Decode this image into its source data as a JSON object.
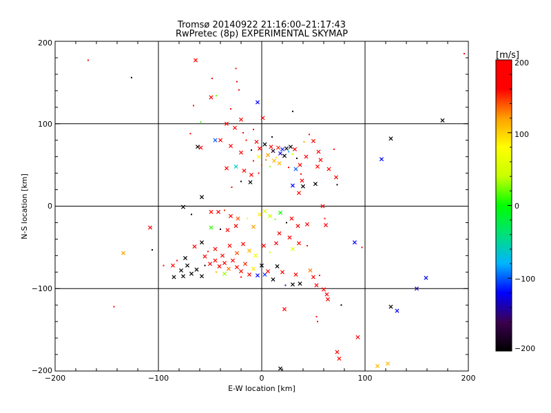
{
  "chart_data": {
    "type": "scatter",
    "title": "Tromsø 20140922 21:16:00–21:17:43",
    "subtitle": "RwPretec (8p) EXPERIMENTAL SKYMAP",
    "xlabel": "E-W location [km]",
    "ylabel": "N-S location [km]",
    "xlim": [
      -200,
      200
    ],
    "ylim": [
      -200,
      200
    ],
    "xticks": [
      "−200",
      "−100",
      "0",
      "100",
      "200"
    ],
    "yticks": [
      "200",
      "100",
      "0",
      "−100",
      "−200"
    ],
    "grid": true,
    "colorbar": {
      "label": "[m/s]",
      "range": [
        -200,
        200
      ],
      "ticks": [
        "200",
        "100",
        "0",
        "−100",
        "−200"
      ],
      "colors": [
        "#000000",
        "#3c0050",
        "#0000ff",
        "#00b4ff",
        "#00e07a",
        "#00ff00",
        "#c8ff00",
        "#ffff00",
        "#ffa000",
        "#ff0000",
        "#ff0000"
      ]
    },
    "markers": {
      "cross": "×",
      "dot": "."
    },
    "points": [
      {
        "x": -168,
        "y": 177,
        "v": 200,
        "m": "dot"
      },
      {
        "x": -126,
        "y": 156,
        "v": -200,
        "m": "dot"
      },
      {
        "x": -64,
        "y": 177,
        "v": 180,
        "m": "cross"
      },
      {
        "x": -25,
        "y": 167,
        "v": 200,
        "m": "dot"
      },
      {
        "x": 196,
        "y": 185,
        "v": 200,
        "m": "dot"
      },
      {
        "x": -49,
        "y": 132,
        "v": 190,
        "m": "cross"
      },
      {
        "x": -44,
        "y": 134,
        "v": 20,
        "m": "dot"
      },
      {
        "x": -4,
        "y": 126,
        "v": -120,
        "m": "cross"
      },
      {
        "x": 1,
        "y": 107,
        "v": 200,
        "m": "cross"
      },
      {
        "x": -34,
        "y": 100,
        "v": 180,
        "m": "cross"
      },
      {
        "x": -26,
        "y": 95,
        "v": 200,
        "m": "cross"
      },
      {
        "x": -20,
        "y": 105,
        "v": 170,
        "m": "cross"
      },
      {
        "x": -45,
        "y": 80,
        "v": -100,
        "m": "cross"
      },
      {
        "x": -62,
        "y": 72,
        "v": -200,
        "m": "cross"
      },
      {
        "x": -69,
        "y": 88,
        "v": 200,
        "m": "dot"
      },
      {
        "x": -59,
        "y": 71,
        "v": 200,
        "m": "cross"
      },
      {
        "x": -40,
        "y": 80,
        "v": 180,
        "m": "cross"
      },
      {
        "x": -30,
        "y": 73,
        "v": 190,
        "m": "cross"
      },
      {
        "x": -20,
        "y": 65,
        "v": 160,
        "m": "cross"
      },
      {
        "x": -15,
        "y": 80,
        "v": 200,
        "m": "dot"
      },
      {
        "x": -10,
        "y": 68,
        "v": -200,
        "m": "dot"
      },
      {
        "x": -5,
        "y": 78,
        "v": 200,
        "m": "cross"
      },
      {
        "x": -2,
        "y": 70,
        "v": 180,
        "m": "cross"
      },
      {
        "x": 3,
        "y": 75,
        "v": -200,
        "m": "cross"
      },
      {
        "x": 6,
        "y": 62,
        "v": 120,
        "m": "cross"
      },
      {
        "x": 9,
        "y": 72,
        "v": 200,
        "m": "cross"
      },
      {
        "x": 11,
        "y": 67,
        "v": -180,
        "m": "cross"
      },
      {
        "x": 14,
        "y": 59,
        "v": 90,
        "m": "dot"
      },
      {
        "x": 16,
        "y": 71,
        "v": 150,
        "m": "cross"
      },
      {
        "x": 18,
        "y": 64,
        "v": -130,
        "m": "cross"
      },
      {
        "x": 20,
        "y": 69,
        "v": -110,
        "m": "cross"
      },
      {
        "x": 22,
        "y": 61,
        "v": -200,
        "m": "cross"
      },
      {
        "x": 24,
        "y": 70,
        "v": -190,
        "m": "cross"
      },
      {
        "x": 26,
        "y": 66,
        "v": -80,
        "m": "dot"
      },
      {
        "x": 28,
        "y": 72,
        "v": -200,
        "m": "cross"
      },
      {
        "x": 30,
        "y": 63,
        "v": 40,
        "m": "dot"
      },
      {
        "x": 32,
        "y": 69,
        "v": 200,
        "m": "cross"
      },
      {
        "x": 34,
        "y": 58,
        "v": -200,
        "m": "dot"
      },
      {
        "x": 12,
        "y": 55,
        "v": 110,
        "m": "cross"
      },
      {
        "x": 4,
        "y": 56,
        "v": 130,
        "m": "dot"
      },
      {
        "x": -3,
        "y": 60,
        "v": 80,
        "m": "cross"
      },
      {
        "x": -8,
        "y": 55,
        "v": 160,
        "m": "dot"
      },
      {
        "x": -25,
        "y": 48,
        "v": -60,
        "m": "cross"
      },
      {
        "x": -34,
        "y": 46,
        "v": 200,
        "m": "cross"
      },
      {
        "x": -17,
        "y": 43,
        "v": 200,
        "m": "cross"
      },
      {
        "x": 0,
        "y": 50,
        "v": 150,
        "m": "dot"
      },
      {
        "x": 8,
        "y": 48,
        "v": 30,
        "m": "dot"
      },
      {
        "x": 17,
        "y": 52,
        "v": 110,
        "m": "cross"
      },
      {
        "x": 26,
        "y": 47,
        "v": 190,
        "m": "dot"
      },
      {
        "x": 37,
        "y": 50,
        "v": 200,
        "m": "cross"
      },
      {
        "x": 43,
        "y": 60,
        "v": 200,
        "m": "cross"
      },
      {
        "x": 50,
        "y": 79,
        "v": 200,
        "m": "cross"
      },
      {
        "x": 55,
        "y": 66,
        "v": 200,
        "m": "cross"
      },
      {
        "x": 57,
        "y": 56,
        "v": 200,
        "m": "cross"
      },
      {
        "x": 70,
        "y": 69,
        "v": 200,
        "m": "dot"
      },
      {
        "x": 54,
        "y": 48,
        "v": 180,
        "m": "cross"
      },
      {
        "x": 65,
        "y": 45,
        "v": 200,
        "m": "cross"
      },
      {
        "x": 30,
        "y": 115,
        "v": -200,
        "m": "dot"
      },
      {
        "x": 33,
        "y": 45,
        "v": -100,
        "m": "cross"
      },
      {
        "x": 38,
        "y": 39,
        "v": 200,
        "m": "dot"
      },
      {
        "x": -10,
        "y": 38,
        "v": 180,
        "m": "cross"
      },
      {
        "x": -20,
        "y": 30,
        "v": -200,
        "m": "dot"
      },
      {
        "x": -11,
        "y": 29,
        "v": -200,
        "m": "cross"
      },
      {
        "x": -3,
        "y": 40,
        "v": 200,
        "m": "dot"
      },
      {
        "x": 39,
        "y": 31,
        "v": 200,
        "m": "cross"
      },
      {
        "x": 30,
        "y": 25,
        "v": -120,
        "m": "cross"
      },
      {
        "x": 40,
        "y": 24,
        "v": -200,
        "m": "cross"
      },
      {
        "x": 52,
        "y": 27,
        "v": -200,
        "m": "cross"
      },
      {
        "x": 72,
        "y": 35,
        "v": 200,
        "m": "cross"
      },
      {
        "x": 73,
        "y": 26,
        "v": -200,
        "m": "dot"
      },
      {
        "x": 36,
        "y": 16,
        "v": 200,
        "m": "cross"
      },
      {
        "x": -58,
        "y": 11,
        "v": -200,
        "m": "cross"
      },
      {
        "x": -29,
        "y": 23,
        "v": 190,
        "m": "dot"
      },
      {
        "x": 116,
        "y": 57,
        "v": -120,
        "m": "cross"
      },
      {
        "x": 125,
        "y": 82,
        "v": -200,
        "m": "cross"
      },
      {
        "x": 175,
        "y": 104,
        "v": -200,
        "m": "cross"
      },
      {
        "x": -76,
        "y": -1,
        "v": -200,
        "m": "cross"
      },
      {
        "x": -68,
        "y": -10,
        "v": -200,
        "m": "dot"
      },
      {
        "x": -49,
        "y": -7,
        "v": 200,
        "m": "cross"
      },
      {
        "x": -42,
        "y": -7,
        "v": 170,
        "m": "cross"
      },
      {
        "x": -36,
        "y": -5,
        "v": 150,
        "m": "dot"
      },
      {
        "x": -30,
        "y": -12,
        "v": 200,
        "m": "cross"
      },
      {
        "x": -23,
        "y": -15,
        "v": 140,
        "m": "cross"
      },
      {
        "x": -49,
        "y": -26,
        "v": 10,
        "m": "cross"
      },
      {
        "x": -40,
        "y": -28,
        "v": -200,
        "m": "dot"
      },
      {
        "x": -33,
        "y": -29,
        "v": 200,
        "m": "cross"
      },
      {
        "x": -25,
        "y": -24,
        "v": 180,
        "m": "cross"
      },
      {
        "x": -14,
        "y": -15,
        "v": 70,
        "m": "dot"
      },
      {
        "x": -8,
        "y": -25,
        "v": 120,
        "m": "cross"
      },
      {
        "x": -2,
        "y": -10,
        "v": 90,
        "m": "cross"
      },
      {
        "x": 3,
        "y": -6,
        "v": 60,
        "m": "cross"
      },
      {
        "x": 8,
        "y": -12,
        "v": 40,
        "m": "cross"
      },
      {
        "x": 13,
        "y": -16,
        "v": 20,
        "m": "dot"
      },
      {
        "x": 18,
        "y": -8,
        "v": 0,
        "m": "cross"
      },
      {
        "x": 24,
        "y": -20,
        "v": -200,
        "m": "dot"
      },
      {
        "x": 29,
        "y": -15,
        "v": 200,
        "m": "cross"
      },
      {
        "x": 35,
        "y": -24,
        "v": 200,
        "m": "cross"
      },
      {
        "x": 44,
        "y": -22,
        "v": 160,
        "m": "cross"
      },
      {
        "x": 59,
        "y": 0,
        "v": 200,
        "m": "cross"
      },
      {
        "x": 61,
        "y": -15,
        "v": 200,
        "m": "dot"
      },
      {
        "x": 62,
        "y": -23,
        "v": 200,
        "m": "cross"
      },
      {
        "x": 17,
        "y": -33,
        "v": 200,
        "m": "cross"
      },
      {
        "x": 27,
        "y": -38,
        "v": 160,
        "m": "cross"
      },
      {
        "x": 36,
        "y": -45,
        "v": 200,
        "m": "cross"
      },
      {
        "x": 44,
        "y": -48,
        "v": 200,
        "m": "dot"
      },
      {
        "x": 30,
        "y": -52,
        "v": 60,
        "m": "cross"
      },
      {
        "x": -65,
        "y": -49,
        "v": 200,
        "m": "cross"
      },
      {
        "x": -58,
        "y": -44,
        "v": -200,
        "m": "cross"
      },
      {
        "x": -52,
        "y": -55,
        "v": 200,
        "m": "dot"
      },
      {
        "x": -45,
        "y": -52,
        "v": 180,
        "m": "cross"
      },
      {
        "x": -38,
        "y": -60,
        "v": 160,
        "m": "cross"
      },
      {
        "x": -31,
        "y": -48,
        "v": 200,
        "m": "cross"
      },
      {
        "x": -24,
        "y": -57,
        "v": 140,
        "m": "cross"
      },
      {
        "x": -18,
        "y": -46,
        "v": 200,
        "m": "cross"
      },
      {
        "x": -12,
        "y": -54,
        "v": 110,
        "m": "cross"
      },
      {
        "x": -6,
        "y": -60,
        "v": 70,
        "m": "cross"
      },
      {
        "x": 2,
        "y": -48,
        "v": 200,
        "m": "cross"
      },
      {
        "x": 8,
        "y": -56,
        "v": 40,
        "m": "dot"
      },
      {
        "x": 14,
        "y": -45,
        "v": 160,
        "m": "cross"
      },
      {
        "x": -74,
        "y": -63,
        "v": -200,
        "m": "cross"
      },
      {
        "x": -72,
        "y": -72,
        "v": -200,
        "m": "cross"
      },
      {
        "x": -78,
        "y": -78,
        "v": -200,
        "m": "cross"
      },
      {
        "x": -76,
        "y": -85,
        "v": -200,
        "m": "cross"
      },
      {
        "x": -68,
        "y": -82,
        "v": -200,
        "m": "cross"
      },
      {
        "x": -63,
        "y": -77,
        "v": -200,
        "m": "cross"
      },
      {
        "x": -58,
        "y": -85,
        "v": -200,
        "m": "cross"
      },
      {
        "x": -55,
        "y": -72,
        "v": -200,
        "m": "dot"
      },
      {
        "x": -86,
        "y": -72,
        "v": 200,
        "m": "cross"
      },
      {
        "x": -82,
        "y": -66,
        "v": 200,
        "m": "dot"
      },
      {
        "x": -95,
        "y": -72,
        "v": 200,
        "m": "dot"
      },
      {
        "x": -85,
        "y": -86,
        "v": -200,
        "m": "cross"
      },
      {
        "x": -50,
        "y": -70,
        "v": 200,
        "m": "cross"
      },
      {
        "x": -45,
        "y": -66,
        "v": 160,
        "m": "cross"
      },
      {
        "x": -41,
        "y": -73,
        "v": 200,
        "m": "cross"
      },
      {
        "x": -36,
        "y": -69,
        "v": 180,
        "m": "cross"
      },
      {
        "x": -32,
        "y": -76,
        "v": 130,
        "m": "cross"
      },
      {
        "x": -28,
        "y": -66,
        "v": 200,
        "m": "cross"
      },
      {
        "x": -24,
        "y": -74,
        "v": 170,
        "m": "cross"
      },
      {
        "x": -20,
        "y": -79,
        "v": 200,
        "m": "cross"
      },
      {
        "x": -16,
        "y": -70,
        "v": 150,
        "m": "cross"
      },
      {
        "x": -12,
        "y": -83,
        "v": 200,
        "m": "cross"
      },
      {
        "x": -8,
        "y": -76,
        "v": 90,
        "m": "cross"
      },
      {
        "x": -4,
        "y": -84,
        "v": -120,
        "m": "cross"
      },
      {
        "x": 0,
        "y": -72,
        "v": -200,
        "m": "cross"
      },
      {
        "x": 3,
        "y": -83,
        "v": -110,
        "m": "cross"
      },
      {
        "x": 6,
        "y": -79,
        "v": 200,
        "m": "cross"
      },
      {
        "x": -36,
        "y": -82,
        "v": 30,
        "m": "cross"
      },
      {
        "x": -44,
        "y": -80,
        "v": 110,
        "m": "dot"
      },
      {
        "x": -55,
        "y": -61,
        "v": 200,
        "m": "cross"
      },
      {
        "x": -20,
        "y": -86,
        "v": 160,
        "m": "dot"
      },
      {
        "x": 11,
        "y": -89,
        "v": -200,
        "m": "cross"
      },
      {
        "x": 15,
        "y": -73,
        "v": -200,
        "m": "cross"
      },
      {
        "x": 20,
        "y": -80,
        "v": 200,
        "m": "cross"
      },
      {
        "x": 23,
        "y": -96,
        "v": -150,
        "m": "dot"
      },
      {
        "x": 30,
        "y": -95,
        "v": -200,
        "m": "cross"
      },
      {
        "x": 37,
        "y": -94,
        "v": -200,
        "m": "cross"
      },
      {
        "x": 33,
        "y": -83,
        "v": 200,
        "m": "cross"
      },
      {
        "x": 47,
        "y": -78,
        "v": 130,
        "m": "cross"
      },
      {
        "x": 50,
        "y": -86,
        "v": 180,
        "m": "cross"
      },
      {
        "x": 56,
        "y": -84,
        "v": 200,
        "m": "dot"
      },
      {
        "x": 53,
        "y": -96,
        "v": 200,
        "m": "cross"
      },
      {
        "x": -108,
        "y": -26,
        "v": 200,
        "m": "cross"
      },
      {
        "x": -106,
        "y": -53,
        "v": -200,
        "m": "dot"
      },
      {
        "x": -134,
        "y": -57,
        "v": 120,
        "m": "cross"
      },
      {
        "x": -143,
        "y": -122,
        "v": 200,
        "m": "dot"
      },
      {
        "x": 90,
        "y": -44,
        "v": -120,
        "m": "cross"
      },
      {
        "x": 97,
        "y": -50,
        "v": 200,
        "m": "dot"
      },
      {
        "x": 60,
        "y": -101,
        "v": 200,
        "m": "cross"
      },
      {
        "x": 63,
        "y": -107,
        "v": 200,
        "m": "cross"
      },
      {
        "x": 64,
        "y": -113,
        "v": 200,
        "m": "cross"
      },
      {
        "x": 77,
        "y": -120,
        "v": -200,
        "m": "dot"
      },
      {
        "x": 22,
        "y": -125,
        "v": 200,
        "m": "cross"
      },
      {
        "x": 53,
        "y": -134,
        "v": 200,
        "m": "dot"
      },
      {
        "x": 54,
        "y": -140,
        "v": 200,
        "m": "dot"
      },
      {
        "x": 93,
        "y": -159,
        "v": 200,
        "m": "cross"
      },
      {
        "x": 73,
        "y": -177,
        "v": 200,
        "m": "cross"
      },
      {
        "x": 75,
        "y": -185,
        "v": 200,
        "m": "cross"
      },
      {
        "x": 112,
        "y": -194,
        "v": 110,
        "m": "cross"
      },
      {
        "x": 122,
        "y": -191,
        "v": 110,
        "m": "cross"
      },
      {
        "x": 18,
        "y": -197,
        "v": -200,
        "m": "cross"
      },
      {
        "x": 150,
        "y": -100,
        "v": -140,
        "m": "cross"
      },
      {
        "x": 159,
        "y": -87,
        "v": -120,
        "m": "cross"
      },
      {
        "x": 125,
        "y": -122,
        "v": -200,
        "m": "cross"
      },
      {
        "x": 131,
        "y": -127,
        "v": -120,
        "m": "cross"
      },
      {
        "x": -22,
        "y": 141,
        "v": 200,
        "m": "dot"
      },
      {
        "x": -24,
        "y": 151,
        "v": 200,
        "m": "dot"
      },
      {
        "x": -66,
        "y": 122,
        "v": 200,
        "m": "dot"
      },
      {
        "x": -48,
        "y": 155,
        "v": 200,
        "m": "dot"
      },
      {
        "x": -59,
        "y": 102,
        "v": 10,
        "m": "dot"
      },
      {
        "x": -30,
        "y": 118,
        "v": 200,
        "m": "dot"
      },
      {
        "x": -18,
        "y": 89,
        "v": 170,
        "m": "dot"
      },
      {
        "x": -8,
        "y": 93,
        "v": 200,
        "m": "dot"
      },
      {
        "x": 10,
        "y": 84,
        "v": -200,
        "m": "dot"
      },
      {
        "x": 41,
        "y": 78,
        "v": 120,
        "m": "dot"
      },
      {
        "x": 46,
        "y": 87,
        "v": 200,
        "m": "dot"
      }
    ]
  }
}
